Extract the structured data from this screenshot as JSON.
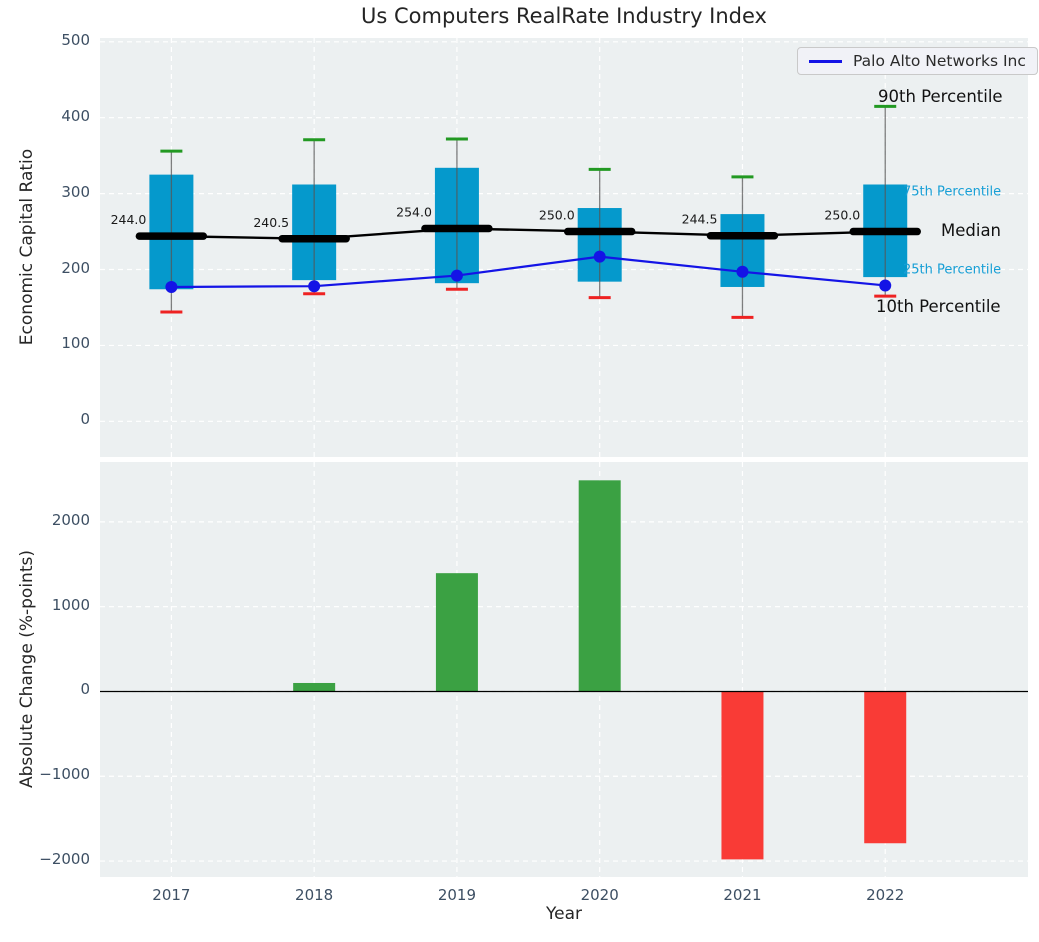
{
  "title": "Us Computers RealRate Industry Index",
  "legend": {
    "label": "Palo Alto Networks Inc"
  },
  "colors": {
    "box": "#0599cc",
    "whisker": "#555555",
    "cap_top": "#229922",
    "cap_bottom": "#ee2222",
    "median": "#000000",
    "company_line": "#1414e6",
    "bar_positive": "#3ba143",
    "bar_negative": "#f93b36",
    "cyan_label": "#179fd6",
    "grid": "#ffffff",
    "panel_bg": "#ecf0f1",
    "tick_label": "#3d4f63"
  },
  "chart_data": [
    {
      "type": "boxplot+line",
      "panel": "top",
      "ylabel": "Economic Capital Ratio",
      "ylim": [
        -47,
        505
      ],
      "yticks": [
        0,
        100,
        200,
        300,
        400,
        500
      ],
      "grid": true,
      "x": [
        2017,
        2018,
        2019,
        2020,
        2021,
        2022
      ],
      "boxes": {
        "p90": [
          356,
          371,
          372,
          332,
          322,
          415
        ],
        "p75": [
          325,
          312,
          334,
          281,
          273,
          312
        ],
        "median": [
          244.0,
          240.5,
          254.0,
          250.0,
          244.5,
          250.0
        ],
        "p25": [
          174,
          186,
          182,
          184,
          177,
          190
        ],
        "p10": [
          144,
          168,
          174,
          163,
          137,
          165
        ]
      },
      "median_labels": [
        "244.0",
        "240.5",
        "254.0",
        "250.0",
        "244.5",
        "250.0"
      ],
      "series": [
        {
          "name": "Palo Alto Networks Inc",
          "type": "line",
          "values": [
            177,
            178,
            192,
            217,
            197,
            179
          ]
        }
      ],
      "annotations": [
        "90th Percentile",
        "75th Percentile",
        "Median",
        "25th Percentile",
        "10th Percentile"
      ],
      "legend_position": "upper right"
    },
    {
      "type": "bar",
      "panel": "bottom",
      "ylabel": "Absolute Change (%-points)",
      "xlabel": "Year",
      "ylim": [
        -2188,
        2706
      ],
      "yticks": [
        -2000,
        -1000,
        0,
        1000,
        2000
      ],
      "grid": true,
      "categories": [
        2017,
        2018,
        2019,
        2020,
        2021,
        2022
      ],
      "values": [
        0,
        100,
        1395,
        2490,
        -1980,
        -1790
      ]
    }
  ]
}
